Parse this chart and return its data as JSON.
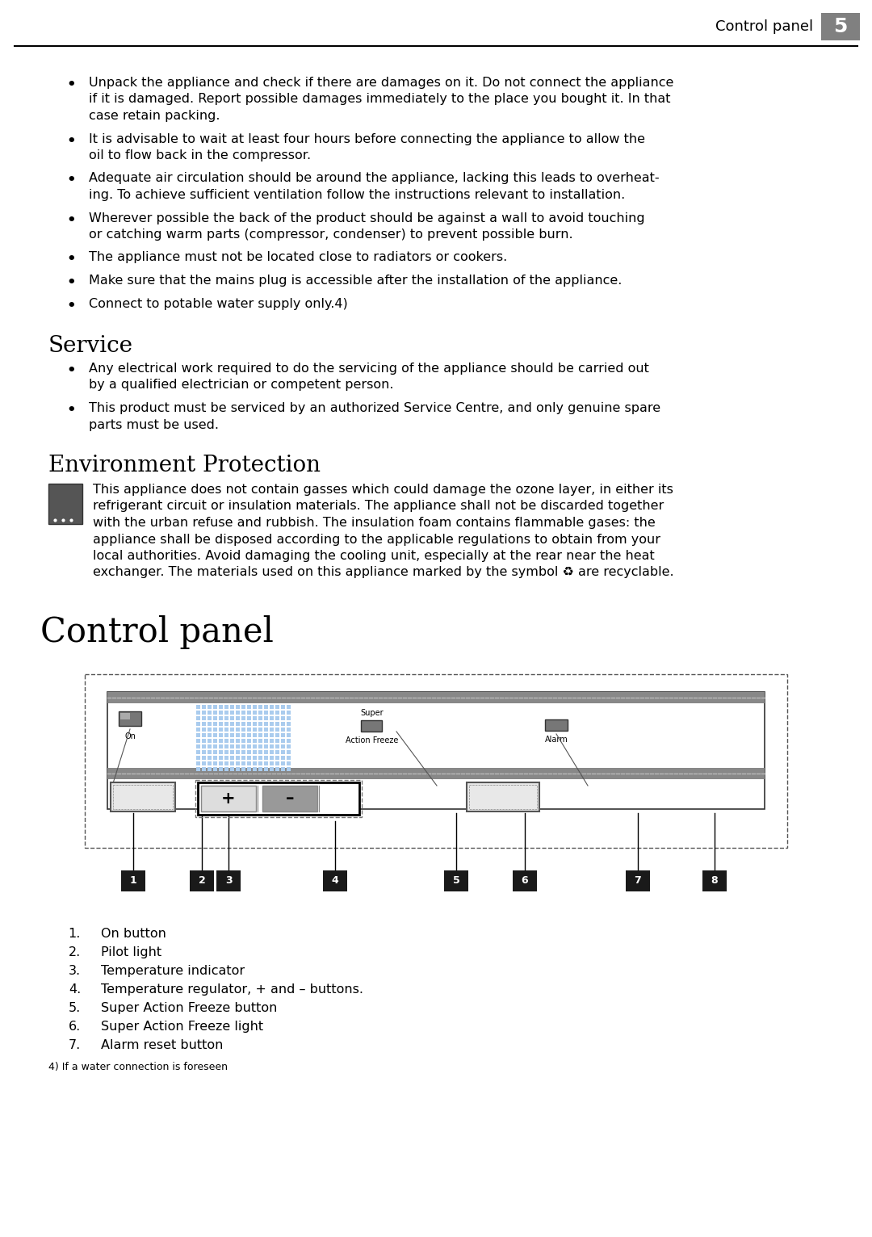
{
  "header_text": "Control panel",
  "header_number": "5",
  "bullet_points": [
    "Unpack the appliance and check if there are damages on it. Do not connect the appliance\nif it is damaged. Report possible damages immediately to the place you bought it. In that\ncase retain packing.",
    "It is advisable to wait at least four hours before connecting the appliance to allow the\noil to flow back in the compressor.",
    "Adequate air circulation should be around the appliance, lacking this leads to overheat-\ning. To achieve sufficient ventilation follow the instructions relevant to installation.",
    "Wherever possible the back of the product should be against a wall to avoid touching\nor catching warm parts (compressor, condenser) to prevent possible burn.",
    "The appliance must not be located close to radiators or cookers.",
    "Make sure that the mains plug is accessible after the installation of the appliance.",
    "Connect to potable water supply only.4)"
  ],
  "service_title": "Service",
  "service_bullets": [
    "Any electrical work required to do the servicing of the appliance should be carried out\nby a qualified electrician or competent person.",
    "This product must be serviced by an authorized Service Centre, and only genuine spare\nparts must be used."
  ],
  "env_title": "Environment Protection",
  "env_lines": [
    "This appliance does not contain gasses which could damage the ozone layer, in either its",
    "refrigerant circuit or insulation materials. The appliance shall not be discarded together",
    "with the urban refuse and rubbish. The insulation foam contains flammable gases: the",
    "appliance shall be disposed according to the applicable regulations to obtain from your",
    "local authorities. Avoid damaging the cooling unit, especially at the rear near the heat",
    "exchanger. The materials used on this appliance marked by the symbol ♻ are recyclable."
  ],
  "control_panel_title": "Control panel",
  "numbered_items": [
    "On button",
    "Pilot light",
    "Temperature indicator",
    "Temperature regulator, + and – buttons.",
    "Super Action Freeze button",
    "Super Action Freeze light",
    "Alarm reset button"
  ],
  "footnote": "4) If a water connection is foreseen",
  "bg_color": "#ffffff",
  "text_color": "#000000",
  "header_bg": "#808080",
  "header_text_color": "#ffffff"
}
